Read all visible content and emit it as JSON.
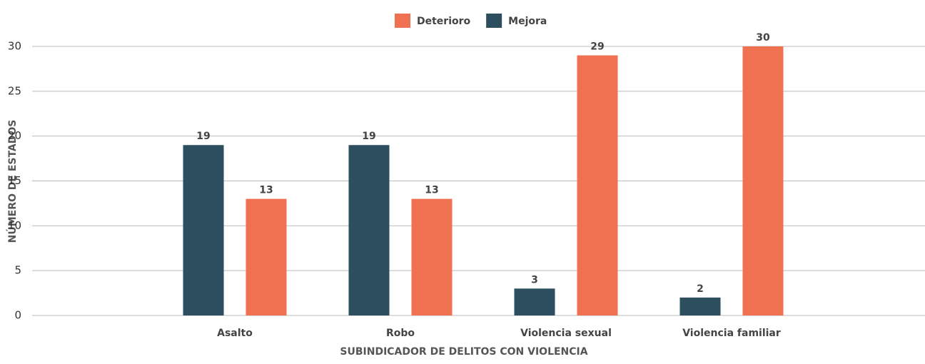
{
  "chart_data": {
    "type": "bar",
    "xlabel": "SUBINDICADOR DE DELITOS CON VIOLENCIA",
    "ylabel": "NÚMERO DE ESTADOS",
    "categories": [
      "Asalto",
      "Robo",
      "Violencia sexual",
      "Violencia familiar"
    ],
    "series": [
      {
        "name": "Deterioro",
        "color": "#f07152",
        "values": [
          13,
          13,
          29,
          30
        ]
      },
      {
        "name": "Mejora",
        "color": "#2d4e5e",
        "values": [
          19,
          19,
          3,
          2
        ]
      }
    ],
    "ylim": [
      0,
      30
    ],
    "yticks": [
      0,
      5,
      10,
      15,
      20,
      25,
      30
    ],
    "grid": true,
    "legend": "top"
  }
}
